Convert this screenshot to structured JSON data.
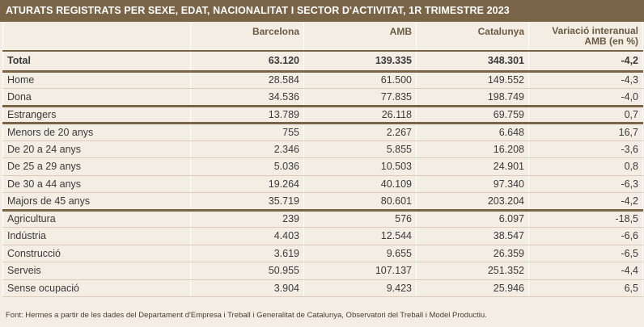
{
  "title": "ATURATS REGISTRATS PER SEXE, EDAT, NACIONALITAT I SECTOR D'ACTIVITAT, 1R TRIMESTRE 2023",
  "columns": [
    "",
    "Barcelona",
    "AMB",
    "Catalunya",
    "Variació interanual AMB (en %)"
  ],
  "column_last_line1": "Variació interanual",
  "column_last_line2": "AMB (en %)",
  "rows": [
    {
      "label": "Total",
      "values": [
        "63.120",
        "139.335",
        "348.301",
        "-4,2"
      ]
    },
    {
      "label": "Home",
      "values": [
        "28.584",
        "61.500",
        "149.552",
        "-4,3"
      ]
    },
    {
      "label": "Dona",
      "values": [
        "34.536",
        "77.835",
        "198.749",
        "-4,0"
      ]
    },
    {
      "label": "Estrangers",
      "values": [
        "13.789",
        "26.118",
        "69.759",
        "0,7"
      ]
    },
    {
      "label": "Menors de 20 anys",
      "values": [
        "755",
        "2.267",
        "6.648",
        "16,7"
      ]
    },
    {
      "label": "De 20 a 24 anys",
      "values": [
        "2.346",
        "5.855",
        "16.208",
        "-3,6"
      ]
    },
    {
      "label": "De 25 a 29 anys",
      "values": [
        "5.036",
        "10.503",
        "24.901",
        "0,8"
      ]
    },
    {
      "label": "De 30 a 44 anys",
      "values": [
        "19.264",
        "40.109",
        "97.340",
        "-6,3"
      ]
    },
    {
      "label": "Majors de 45 anys",
      "values": [
        "35.719",
        "80.601",
        "203.204",
        "-4,2"
      ]
    },
    {
      "label": "Agricultura",
      "values": [
        "239",
        "576",
        "6.097",
        "-18,5"
      ]
    },
    {
      "label": "Indústria",
      "values": [
        "4.403",
        "12.544",
        "38.547",
        "-6,6"
      ]
    },
    {
      "label": "Construcció",
      "values": [
        "3.619",
        "9.655",
        "26.359",
        "-6,5"
      ]
    },
    {
      "label": "Serveis",
      "values": [
        "50.955",
        "107.137",
        "251.352",
        "-4,4"
      ]
    },
    {
      "label": "Sense ocupació",
      "values": [
        "3.904",
        "9.423",
        "25.946",
        "6,5"
      ]
    }
  ],
  "footer": "Font: Hermes a partir de les dades del Departament d'Empresa i Treball i Generalitat de Catalunya, Observatori del Treball i Model Productiu.",
  "colors": {
    "header_bg": "#7a6448",
    "page_bg": "#f3ede3",
    "separator": "#7a6448"
  }
}
